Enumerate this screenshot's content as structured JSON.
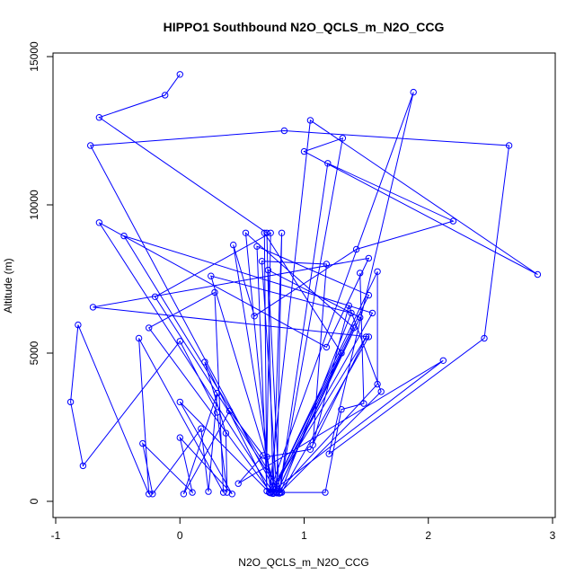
{
  "chart_data": {
    "type": "line",
    "title": "HIPPO1 Southbound N2O_QCLS_m_N2O_CCG",
    "xlabel": "N2O_QCLS_m_N2O_CCG",
    "ylabel": "Altitude (m)",
    "xlim": [
      -1,
      3
    ],
    "ylim": [
      0,
      15000
    ],
    "xticks": [
      -1,
      0,
      1,
      2,
      3
    ],
    "yticks": [
      0,
      5000,
      10000,
      15000
    ],
    "grid": false,
    "legend": "none",
    "markers": "open-circle",
    "color": "#0000ff",
    "series": [
      {
        "points": [
          {
            "x": 0.0,
            "y": 14400
          },
          {
            "x": -0.12,
            "y": 13700
          },
          {
            "x": -0.65,
            "y": 12950
          },
          {
            "x": 0.7,
            "y": 9050
          },
          {
            "x": 0.75,
            "y": 500
          },
          {
            "x": -0.72,
            "y": 12000
          },
          {
            "x": 0.84,
            "y": 12500
          },
          {
            "x": 2.65,
            "y": 12000
          },
          {
            "x": 2.45,
            "y": 5500
          },
          {
            "x": 1.2,
            "y": 1600
          },
          {
            "x": 1.88,
            "y": 13800
          },
          {
            "x": 0.72,
            "y": 300
          },
          {
            "x": 1.05,
            "y": 12850
          },
          {
            "x": 2.88,
            "y": 7650
          },
          {
            "x": 1.0,
            "y": 11800
          },
          {
            "x": 1.31,
            "y": 12250
          },
          {
            "x": 0.8,
            "y": 300
          },
          {
            "x": 1.19,
            "y": 11400
          },
          {
            "x": 2.2,
            "y": 9450
          },
          {
            "x": 1.42,
            "y": 8500
          },
          {
            "x": 0.6,
            "y": 6250
          },
          {
            "x": 0.43,
            "y": 8650
          },
          {
            "x": 0.75,
            "y": 300
          },
          {
            "x": -0.65,
            "y": 9400
          },
          {
            "x": 1.18,
            "y": 5200
          },
          {
            "x": 1.52,
            "y": 8200
          },
          {
            "x": -0.7,
            "y": 6550
          },
          {
            "x": 1.52,
            "y": 5550
          },
          {
            "x": 0.82,
            "y": 300
          },
          {
            "x": -0.45,
            "y": 8950
          },
          {
            "x": 1.55,
            "y": 6350
          },
          {
            "x": 0.73,
            "y": 280
          },
          {
            "x": 0.53,
            "y": 9050
          },
          {
            "x": 1.4,
            "y": 5850
          },
          {
            "x": 0.78,
            "y": 300
          },
          {
            "x": 0.82,
            "y": 9050
          },
          {
            "x": 0.75,
            "y": 260
          },
          {
            "x": 1.3,
            "y": 5000
          },
          {
            "x": 0.68,
            "y": 9050
          },
          {
            "x": 0.7,
            "y": 350
          },
          {
            "x": 0.62,
            "y": 8600
          },
          {
            "x": 1.52,
            "y": 6950
          },
          {
            "x": 0.74,
            "y": 330
          },
          {
            "x": 1.59,
            "y": 7750
          },
          {
            "x": 1.59,
            "y": 3950
          },
          {
            "x": 0.78,
            "y": 280
          },
          {
            "x": 0.66,
            "y": 8100
          },
          {
            "x": 1.18,
            "y": 8000
          },
          {
            "x": 1.07,
            "y": 1900
          },
          {
            "x": 1.36,
            "y": 6600
          },
          {
            "x": 1.62,
            "y": 3700
          },
          {
            "x": 0.8,
            "y": 270
          },
          {
            "x": 0.71,
            "y": 7800
          },
          {
            "x": 1.45,
            "y": 6200
          },
          {
            "x": 0.78,
            "y": 300
          },
          {
            "x": 0.25,
            "y": 7600
          },
          {
            "x": 1.38,
            "y": 6350
          },
          {
            "x": 0.81,
            "y": 300
          },
          {
            "x": -0.2,
            "y": 6900
          },
          {
            "x": 0.73,
            "y": 9050
          },
          {
            "x": 0.7,
            "y": 1500
          },
          {
            "x": 1.05,
            "y": 1750
          },
          {
            "x": 1.5,
            "y": 5550
          },
          {
            "x": 0.73,
            "y": 300
          },
          {
            "x": -0.25,
            "y": 5850
          },
          {
            "x": 0.28,
            "y": 7050
          },
          {
            "x": 0.35,
            "y": 300
          },
          {
            "x": -0.33,
            "y": 5500
          },
          {
            "x": -0.25,
            "y": 250
          },
          {
            "x": -0.82,
            "y": 5950
          },
          {
            "x": -0.88,
            "y": 3350
          },
          {
            "x": -0.78,
            "y": 1200
          },
          {
            "x": 0.0,
            "y": 5400
          },
          {
            "x": 0.3,
            "y": 3000
          },
          {
            "x": 0.38,
            "y": 300
          },
          {
            "x": 0.37,
            "y": 2300
          },
          {
            "x": 0.2,
            "y": 4700
          },
          {
            "x": 0.72,
            "y": 300
          },
          {
            "x": 0.0,
            "y": 3350
          },
          {
            "x": 0.42,
            "y": 250
          },
          {
            "x": 0.0,
            "y": 2150
          },
          {
            "x": 0.1,
            "y": 300
          },
          {
            "x": -0.3,
            "y": 1950
          },
          {
            "x": -0.22,
            "y": 250
          },
          {
            "x": 0.17,
            "y": 2450
          },
          {
            "x": 0.23,
            "y": 330
          },
          {
            "x": 0.3,
            "y": 3650
          },
          {
            "x": 0.03,
            "y": 250
          },
          {
            "x": 0.4,
            "y": 3050
          },
          {
            "x": 0.67,
            "y": 1550
          },
          {
            "x": 0.47,
            "y": 600
          },
          {
            "x": 2.12,
            "y": 4750
          },
          {
            "x": 0.73,
            "y": 300
          },
          {
            "x": 1.17,
            "y": 300
          },
          {
            "x": 1.3,
            "y": 3100
          },
          {
            "x": 1.48,
            "y": 3300
          },
          {
            "x": 1.45,
            "y": 7700
          }
        ]
      }
    ]
  }
}
